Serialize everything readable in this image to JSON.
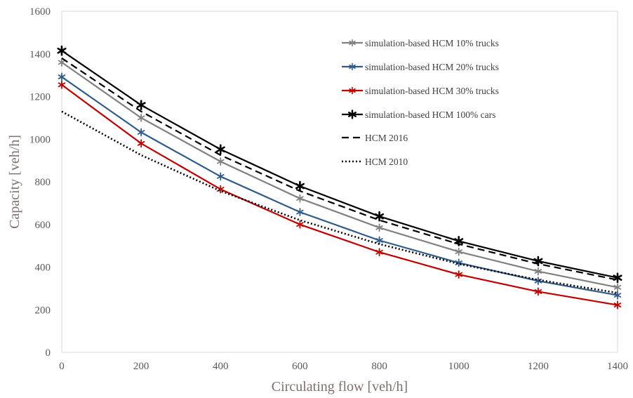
{
  "chart_data": {
    "type": "line",
    "xlabel": "Circulating flow [veh/h]",
    "ylabel": "Capacity [veh/h]",
    "x": [
      0,
      200,
      400,
      600,
      800,
      1000,
      1200,
      1400
    ],
    "xlim": [
      0,
      1400
    ],
    "ylim": [
      0,
      1600
    ],
    "xticks": [
      "0",
      "200",
      "400",
      "600",
      "800",
      "1000",
      "1200",
      "1400"
    ],
    "yticks": [
      "0",
      "200",
      "400",
      "600",
      "800",
      "1000",
      "1200",
      "1400",
      "1600"
    ],
    "grid": "none",
    "legend_position": "top-right",
    "series": [
      {
        "name": "simulation-based HCM  10% trucks",
        "color": "#808080",
        "style": "solid",
        "marker": "star",
        "values": [
          1360,
          1100,
          895,
          722,
          585,
          472,
          380,
          305
        ]
      },
      {
        "name": "simulation-based  HCM  20% trucks",
        "color": "#2e5c8a",
        "style": "solid",
        "marker": "star",
        "values": [
          1292,
          1032,
          825,
          658,
          525,
          420,
          335,
          268
        ]
      },
      {
        "name": "simulation-based  HCM  30% trucks",
        "color": "#c00000",
        "style": "solid",
        "marker": "star",
        "values": [
          1255,
          980,
          765,
          600,
          470,
          365,
          285,
          222
        ]
      },
      {
        "name": "simulation-based HCM 100% cars",
        "color": "#000000",
        "style": "solid",
        "marker": "star",
        "values": [
          1415,
          1160,
          952,
          780,
          638,
          522,
          428,
          350
        ]
      },
      {
        "name": "HCM 2016",
        "color": "#000000",
        "style": "dashed",
        "marker": "none",
        "values": [
          1380,
          1130,
          925,
          757,
          620,
          508,
          415,
          340
        ]
      },
      {
        "name": "HCM 2010",
        "color": "#000000",
        "style": "dotted",
        "marker": "none",
        "values": [
          1130,
          925,
          757,
          620,
          508,
          415,
          340,
          279
        ]
      }
    ]
  }
}
